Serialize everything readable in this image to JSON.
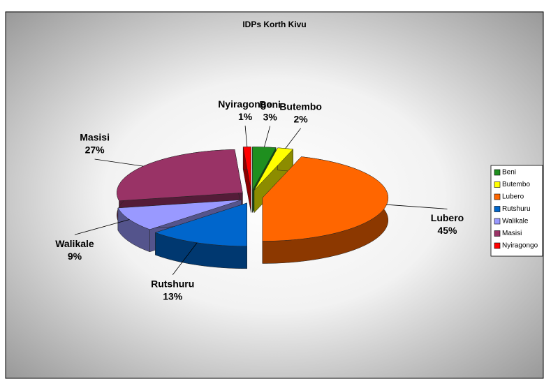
{
  "chart_data": {
    "type": "pie3d",
    "title": "IDPs Korth Kivu",
    "categories": [
      "Beni",
      "Butembo",
      "Lubero",
      "Rutshuru",
      "Walikale",
      "Masisi",
      "Nyiragongo"
    ],
    "values": [
      3,
      2,
      45,
      13,
      9,
      27,
      1
    ],
    "value_labels": [
      "3%",
      "2%",
      "45%",
      "13%",
      "9%",
      "27%",
      "1%"
    ],
    "colors": [
      "#1f8f1f",
      "#ffff00",
      "#ff6600",
      "#0066cc",
      "#9999ff",
      "#993366",
      "#ff0000"
    ],
    "legend": "right"
  }
}
